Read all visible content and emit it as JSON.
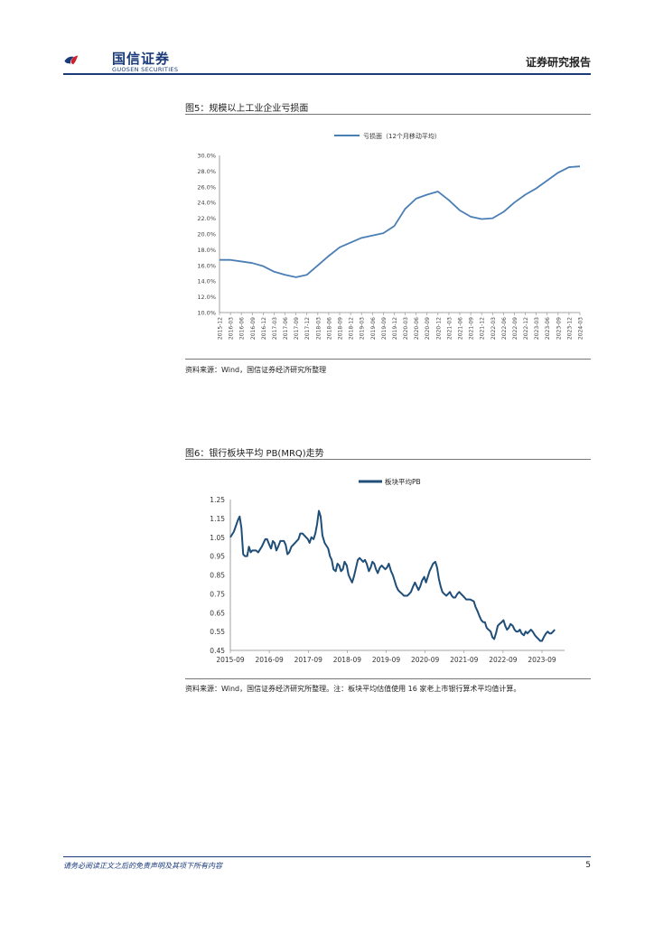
{
  "header": {
    "brand_cn": "国信证券",
    "brand_en": "GUOSEN SECURITIES",
    "doc_type": "证券研究报告",
    "logo_color_blue": "#1a3a7a",
    "logo_color_red": "#d0202a"
  },
  "figure5": {
    "title": "图5：规模以上工业企业亏损面",
    "source": "资料来源：Wind，国信证券经济研究所整理"
  },
  "figure6": {
    "title": "图6：银行板块平均 PB(MRQ)走势",
    "source": "资料来源：Wind，国信证券经济研究所整理。注：板块平均估值使用 16 家老上市银行算术平均值计算。"
  },
  "footer": {
    "disclaimer": "请务必阅读正文之后的免责声明及其项下所有内容",
    "page_number": "5"
  },
  "chart_data": [
    {
      "type": "line",
      "legend_placement": "top-center",
      "grid": false,
      "series_color": "#4a7fb5",
      "ylim": [
        10.0,
        30.0
      ],
      "y_ticks": [
        "10.0%",
        "12.0%",
        "14.0%",
        "16.0%",
        "18.0%",
        "20.0%",
        "22.0%",
        "24.0%",
        "26.0%",
        "28.0%",
        "30.0%"
      ],
      "categories": [
        "2015-12",
        "2016-03",
        "2016-06",
        "2016-09",
        "2016-12",
        "2017-03",
        "2017-06",
        "2017-09",
        "2017-12",
        "2018-03",
        "2018-06",
        "2018-09",
        "2018-12",
        "2019-03",
        "2019-06",
        "2019-09",
        "2019-12",
        "2020-03",
        "2020-06",
        "2020-09",
        "2020-12",
        "2021-03",
        "2021-06",
        "2021-09",
        "2021-12",
        "2022-03",
        "2022-06",
        "2022-09",
        "2022-12",
        "2023-03",
        "2023-06",
        "2023-09",
        "2023-12",
        "2024-03"
      ],
      "series": [
        {
          "name": "亏损面（12个月移动平均）",
          "values": [
            16.7,
            16.7,
            16.5,
            16.3,
            15.9,
            15.2,
            14.8,
            14.5,
            14.8,
            16.0,
            17.2,
            18.3,
            18.9,
            19.5,
            19.8,
            20.1,
            21.0,
            23.2,
            24.5,
            25.0,
            25.4,
            24.3,
            23.0,
            22.2,
            21.9,
            22.0,
            22.8,
            24.0,
            25.0,
            25.8,
            26.8,
            27.8,
            28.5,
            28.6
          ]
        }
      ]
    },
    {
      "type": "line",
      "legend_placement": "top-center",
      "grid": false,
      "series_color": "#1f4e79",
      "ylim": [
        0.45,
        1.25
      ],
      "y_ticks": [
        "0.45",
        "0.55",
        "0.65",
        "0.75",
        "0.85",
        "0.95",
        "1.05",
        "1.15",
        "1.25"
      ],
      "x_ticks": [
        "2015-09",
        "2016-09",
        "2017-09",
        "2018-09",
        "2019-09",
        "2020-09",
        "2021-09",
        "2022-09",
        "2023-09"
      ],
      "x_range": [
        2015.75,
        2024.33
      ],
      "series": [
        {
          "name": "板块平均PB",
          "points": [
            [
              2015.75,
              1.05
            ],
            [
              2015.83,
              1.08
            ],
            [
              2015.92,
              1.14
            ],
            [
              2015.96,
              1.16
            ],
            [
              2016.0,
              1.1
            ],
            [
              2016.04,
              0.96
            ],
            [
              2016.08,
              0.95
            ],
            [
              2016.13,
              0.95
            ],
            [
              2016.17,
              1.0
            ],
            [
              2016.21,
              0.97
            ],
            [
              2016.25,
              0.98
            ],
            [
              2016.33,
              0.98
            ],
            [
              2016.38,
              0.97
            ],
            [
              2016.46,
              1.0
            ],
            [
              2016.54,
              1.04
            ],
            [
              2016.58,
              1.04
            ],
            [
              2016.63,
              1.01
            ],
            [
              2016.67,
              0.99
            ],
            [
              2016.71,
              1.03
            ],
            [
              2016.75,
              1.02
            ],
            [
              2016.79,
              0.98
            ],
            [
              2016.83,
              1.0
            ],
            [
              2016.88,
              1.03
            ],
            [
              2016.96,
              1.03
            ],
            [
              2017.0,
              1.01
            ],
            [
              2017.04,
              0.96
            ],
            [
              2017.08,
              0.97
            ],
            [
              2017.13,
              1.0
            ],
            [
              2017.21,
              1.02
            ],
            [
              2017.29,
              1.04
            ],
            [
              2017.33,
              1.07
            ],
            [
              2017.38,
              1.07
            ],
            [
              2017.42,
              1.06
            ],
            [
              2017.5,
              1.04
            ],
            [
              2017.54,
              1.02
            ],
            [
              2017.58,
              1.05
            ],
            [
              2017.63,
              1.04
            ],
            [
              2017.67,
              1.07
            ],
            [
              2017.71,
              1.12
            ],
            [
              2017.75,
              1.19
            ],
            [
              2017.79,
              1.16
            ],
            [
              2017.83,
              1.06
            ],
            [
              2017.88,
              1.02
            ],
            [
              2017.96,
              0.99
            ],
            [
              2018.0,
              0.95
            ],
            [
              2018.04,
              0.93
            ],
            [
              2018.08,
              0.88
            ],
            [
              2018.13,
              0.87
            ],
            [
              2018.17,
              0.91
            ],
            [
              2018.21,
              0.9
            ],
            [
              2018.25,
              0.87
            ],
            [
              2018.29,
              0.88
            ],
            [
              2018.33,
              0.92
            ],
            [
              2018.38,
              0.9
            ],
            [
              2018.42,
              0.85
            ],
            [
              2018.5,
              0.81
            ],
            [
              2018.54,
              0.84
            ],
            [
              2018.58,
              0.88
            ],
            [
              2018.63,
              0.93
            ],
            [
              2018.67,
              0.94
            ],
            [
              2018.71,
              0.93
            ],
            [
              2018.75,
              0.92
            ],
            [
              2018.79,
              0.93
            ],
            [
              2018.83,
              0.91
            ],
            [
              2018.88,
              0.87
            ],
            [
              2018.92,
              0.89
            ],
            [
              2018.96,
              0.92
            ],
            [
              2019.0,
              0.91
            ],
            [
              2019.04,
              0.88
            ],
            [
              2019.08,
              0.86
            ],
            [
              2019.13,
              0.89
            ],
            [
              2019.17,
              0.9
            ],
            [
              2019.21,
              0.89
            ],
            [
              2019.25,
              0.88
            ],
            [
              2019.29,
              0.89
            ],
            [
              2019.33,
              0.91
            ],
            [
              2019.38,
              0.87
            ],
            [
              2019.42,
              0.85
            ],
            [
              2019.46,
              0.82
            ],
            [
              2019.5,
              0.79
            ],
            [
              2019.54,
              0.77
            ],
            [
              2019.58,
              0.76
            ],
            [
              2019.63,
              0.75
            ],
            [
              2019.67,
              0.74
            ],
            [
              2019.75,
              0.74
            ],
            [
              2019.79,
              0.75
            ],
            [
              2019.83,
              0.76
            ],
            [
              2019.88,
              0.79
            ],
            [
              2019.92,
              0.81
            ],
            [
              2019.96,
              0.79
            ],
            [
              2020.0,
              0.77
            ],
            [
              2020.04,
              0.79
            ],
            [
              2020.08,
              0.82
            ],
            [
              2020.13,
              0.84
            ],
            [
              2020.17,
              0.81
            ],
            [
              2020.21,
              0.84
            ],
            [
              2020.25,
              0.87
            ],
            [
              2020.29,
              0.89
            ],
            [
              2020.33,
              0.91
            ],
            [
              2020.38,
              0.92
            ],
            [
              2020.42,
              0.89
            ],
            [
              2020.46,
              0.83
            ],
            [
              2020.5,
              0.79
            ],
            [
              2020.54,
              0.76
            ],
            [
              2020.58,
              0.75
            ],
            [
              2020.63,
              0.74
            ],
            [
              2020.67,
              0.75
            ],
            [
              2020.71,
              0.76
            ],
            [
              2020.75,
              0.74
            ],
            [
              2020.79,
              0.73
            ],
            [
              2020.83,
              0.73
            ],
            [
              2020.88,
              0.75
            ],
            [
              2020.92,
              0.76
            ],
            [
              2020.96,
              0.75
            ],
            [
              2021.0,
              0.74
            ],
            [
              2021.04,
              0.73
            ],
            [
              2021.08,
              0.72
            ],
            [
              2021.17,
              0.72
            ],
            [
              2021.25,
              0.71
            ],
            [
              2021.29,
              0.68
            ],
            [
              2021.33,
              0.66
            ],
            [
              2021.38,
              0.63
            ],
            [
              2021.42,
              0.61
            ],
            [
              2021.46,
              0.6
            ],
            [
              2021.5,
              0.6
            ],
            [
              2021.54,
              0.57
            ],
            [
              2021.58,
              0.56
            ],
            [
              2021.63,
              0.55
            ],
            [
              2021.67,
              0.52
            ],
            [
              2021.71,
              0.51
            ],
            [
              2021.75,
              0.54
            ],
            [
              2021.79,
              0.58
            ],
            [
              2021.83,
              0.59
            ],
            [
              2021.88,
              0.6
            ],
            [
              2021.92,
              0.61
            ],
            [
              2021.96,
              0.58
            ],
            [
              2022.0,
              0.56
            ],
            [
              2022.04,
              0.57
            ],
            [
              2022.08,
              0.59
            ],
            [
              2022.13,
              0.58
            ],
            [
              2022.17,
              0.56
            ],
            [
              2022.21,
              0.55
            ],
            [
              2022.25,
              0.55
            ],
            [
              2022.29,
              0.56
            ],
            [
              2022.33,
              0.54
            ],
            [
              2022.38,
              0.53
            ],
            [
              2022.42,
              0.55
            ],
            [
              2022.46,
              0.54
            ],
            [
              2022.5,
              0.55
            ],
            [
              2022.54,
              0.56
            ],
            [
              2022.58,
              0.55
            ],
            [
              2022.63,
              0.53
            ],
            [
              2022.67,
              0.52
            ],
            [
              2022.71,
              0.51
            ],
            [
              2022.75,
              0.5
            ],
            [
              2022.79,
              0.5
            ],
            [
              2022.83,
              0.52
            ],
            [
              2022.88,
              0.54
            ],
            [
              2022.92,
              0.55
            ],
            [
              2022.96,
              0.54
            ],
            [
              2023.0,
              0.54
            ],
            [
              2023.04,
              0.55
            ],
            [
              2023.08,
              0.56
            ]
          ]
        }
      ]
    }
  ]
}
